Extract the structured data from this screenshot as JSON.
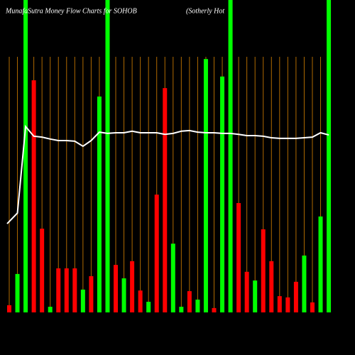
{
  "chart_data": {
    "type": "bar",
    "title": "MunafaSutra  Money Flow  Charts for SOHOB",
    "subtitle": "(Sotherly Hot",
    "ylim": [
      0,
      100
    ],
    "bars": {
      "values": [
        2.3,
        12.3,
        100,
        74.3,
        26.8,
        1.8,
        14.1,
        14.1,
        14.1,
        7.3,
        11.6,
        69.1,
        100,
        15.2,
        10.9,
        16.4,
        7.0,
        3.4,
        37.7,
        71.8,
        22.0,
        1.8,
        6.8,
        4.1,
        81.1,
        1.4,
        75.5,
        100,
        35.0,
        13.0,
        10.2,
        26.6,
        16.4,
        5.2,
        4.8,
        9.8,
        18.2,
        3.2,
        30.7,
        100
      ],
      "colors": [
        "#ff0000",
        "#00ff00",
        "#00ff00",
        "#ff0000",
        "#ff0000",
        "#00ff00",
        "#ff0000",
        "#ff0000",
        "#ff0000",
        "#00ff00",
        "#ff0000",
        "#00ff00",
        "#00ff00",
        "#ff0000",
        "#00ff00",
        "#ff0000",
        "#ff0000",
        "#00ff00",
        "#ff0000",
        "#ff0000",
        "#00ff00",
        "#00ff00",
        "#ff0000",
        "#00ff00",
        "#00ff00",
        "#ff0000",
        "#00ff00",
        "#00ff00",
        "#ff0000",
        "#ff0000",
        "#00ff00",
        "#ff0000",
        "#ff0000",
        "#ff0000",
        "#ff0000",
        "#ff0000",
        "#00ff00",
        "#ff0000",
        "#00ff00",
        "#00ff00"
      ]
    },
    "line": {
      "color": "#ffffff",
      "values": [
        28.4,
        31.8,
        59.5,
        56.4,
        56.1,
        55.5,
        55.0,
        55.0,
        54.8,
        53.2,
        55.0,
        57.7,
        57.3,
        57.5,
        57.5,
        58.0,
        57.5,
        57.5,
        57.5,
        57.0,
        57.3,
        58.0,
        58.2,
        57.7,
        57.5,
        57.5,
        57.3,
        57.3,
        57.0,
        56.6,
        56.6,
        56.4,
        55.9,
        55.7,
        55.7,
        55.7,
        55.9,
        56.1,
        57.5,
        56.8
      ]
    }
  }
}
